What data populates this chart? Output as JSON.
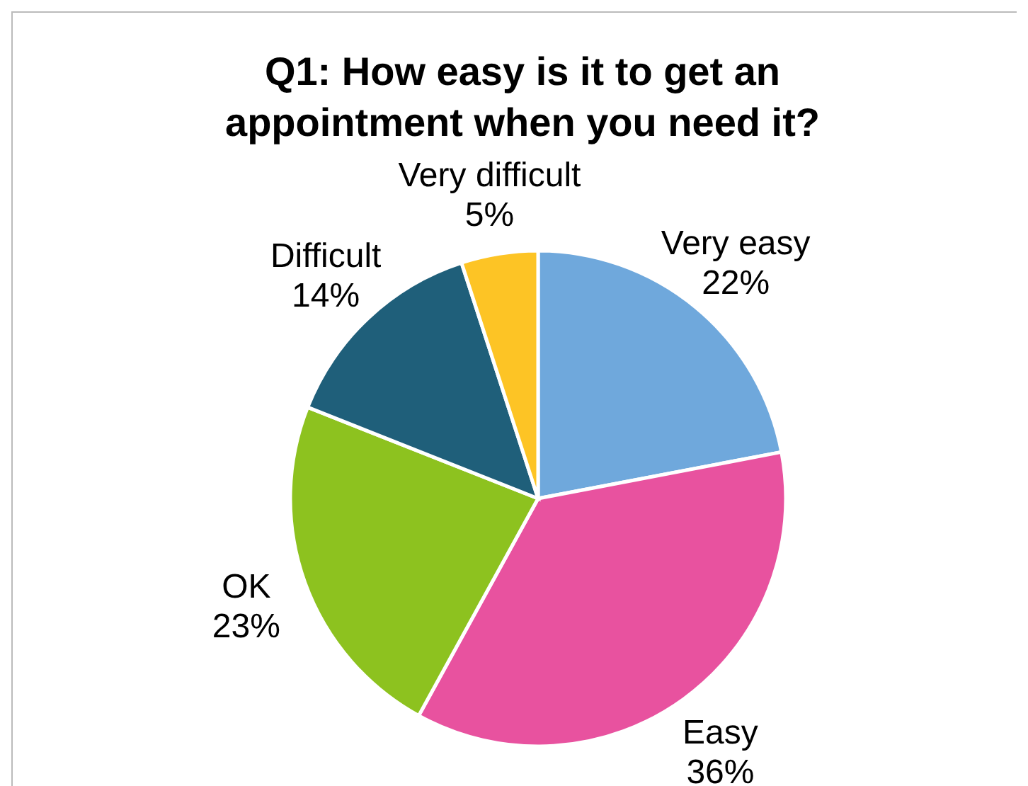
{
  "chart_data": {
    "type": "pie",
    "title": "Q1: How easy is it to get an appointment when you need it?",
    "categories": [
      "Very easy",
      "Easy",
      "OK",
      "Difficult",
      "Very difficult"
    ],
    "values": [
      22,
      36,
      23,
      14,
      5
    ],
    "value_labels": [
      "22%",
      "36%",
      "23%",
      "14%",
      "5%"
    ],
    "colors": [
      "#6fa8dc",
      "#e8529f",
      "#8dc21f",
      "#1f5f7a",
      "#fdc425"
    ],
    "legend": false
  }
}
